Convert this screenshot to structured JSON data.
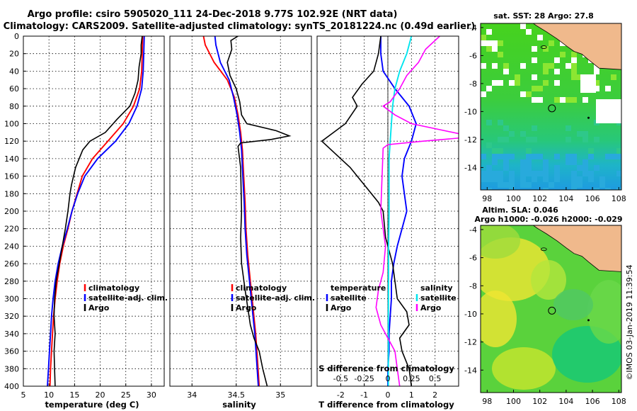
{
  "header": {
    "title_line1": "Argo profile: csiro 5905020_111 24-Dec-2018 9.77S 102.92E (NRT data)",
    "title_line2": "Climatology: CARS2009. Satellite-adjusted climatology: synTS_20181224.nc (0.49d earlier)"
  },
  "colors": {
    "climatology": "#ff0000",
    "satellite": "#0000ff",
    "argo": "#000000",
    "s_satellite": "#00e5ee",
    "s_argo": "#ff00ff",
    "land": "#f0b98c",
    "sst_low": "#1e9be0",
    "sst_high": "#3cdc23",
    "sla_low": "#14c878",
    "sla_high": "#f0e632"
  },
  "chart_data": [
    {
      "type": "line",
      "name": "temperature",
      "xlabel": "temperature (deg C)",
      "ylabel": "",
      "xlim": [
        5,
        32.5
      ],
      "ylim": [
        400,
        0
      ],
      "xticks": [
        5,
        10,
        15,
        20,
        25,
        30
      ],
      "yticks": [
        0,
        20,
        40,
        60,
        80,
        100,
        120,
        140,
        160,
        180,
        200,
        220,
        240,
        260,
        280,
        300,
        320,
        340,
        360,
        380,
        400
      ],
      "legend": [
        "climatology",
        "satellite-adj. clim.",
        "Argo"
      ],
      "legend_position": "lower-right",
      "series": [
        {
          "name": "climatology",
          "points": [
            [
              28.3,
              0
            ],
            [
              28.2,
              20
            ],
            [
              28.1,
              40
            ],
            [
              27.7,
              60
            ],
            [
              26.5,
              80
            ],
            [
              24.5,
              100
            ],
            [
              21.5,
              120
            ],
            [
              18.5,
              140
            ],
            [
              16.5,
              160
            ],
            [
              15.5,
              180
            ],
            [
              14.5,
              200
            ],
            [
              13.7,
              220
            ],
            [
              12.8,
              240
            ],
            [
              12.1,
              260
            ],
            [
              11.6,
              280
            ],
            [
              11.2,
              300
            ],
            [
              10.9,
              320
            ],
            [
              10.7,
              340
            ],
            [
              10.5,
              360
            ],
            [
              10.3,
              380
            ],
            [
              10.2,
              400
            ]
          ]
        },
        {
          "name": "satellite-adj. clim.",
          "points": [
            [
              28.6,
              0
            ],
            [
              28.5,
              20
            ],
            [
              28.4,
              40
            ],
            [
              28.1,
              60
            ],
            [
              27.2,
              80
            ],
            [
              25.6,
              100
            ],
            [
              23.0,
              120
            ],
            [
              19.5,
              140
            ],
            [
              17.0,
              160
            ],
            [
              15.6,
              180
            ],
            [
              14.5,
              200
            ],
            [
              13.6,
              220
            ],
            [
              12.6,
              240
            ],
            [
              11.8,
              260
            ],
            [
              11.2,
              280
            ],
            [
              10.8,
              300
            ],
            [
              10.5,
              320
            ],
            [
              10.3,
              340
            ],
            [
              10.1,
              360
            ],
            [
              9.9,
              380
            ],
            [
              9.7,
              400
            ]
          ]
        },
        {
          "name": "Argo",
          "points": [
            [
              28.2,
              0
            ],
            [
              28.0,
              10
            ],
            [
              28.0,
              20
            ],
            [
              27.6,
              35
            ],
            [
              27.4,
              50
            ],
            [
              26.8,
              65
            ],
            [
              25.8,
              80
            ],
            [
              23.3,
              95
            ],
            [
              21.0,
              110
            ],
            [
              18.0,
              120
            ],
            [
              16.6,
              130
            ],
            [
              15.2,
              150
            ],
            [
              14.4,
              170
            ],
            [
              14.1,
              180
            ],
            [
              13.7,
              200
            ],
            [
              13.2,
              220
            ],
            [
              12.6,
              240
            ],
            [
              12.0,
              260
            ],
            [
              11.4,
              280
            ],
            [
              11.1,
              300
            ],
            [
              11.0,
              320
            ],
            [
              11.2,
              340
            ],
            [
              11.0,
              360
            ],
            [
              11.1,
              380
            ],
            [
              11.2,
              400
            ]
          ]
        }
      ]
    },
    {
      "type": "line",
      "name": "salinity",
      "xlabel": "salinity",
      "ylabel": "",
      "xlim": [
        33.75,
        35.35
      ],
      "ylim": [
        400,
        0
      ],
      "xticks": [
        34,
        34.5,
        35
      ],
      "legend": [
        "climatology",
        "satellite-adj. clim.",
        "Argo"
      ],
      "legend_position": "lower-right",
      "series": [
        {
          "name": "climatology",
          "points": [
            [
              34.13,
              0
            ],
            [
              34.15,
              10
            ],
            [
              34.25,
              30
            ],
            [
              34.4,
              50
            ],
            [
              34.48,
              70
            ],
            [
              34.52,
              90
            ],
            [
              34.55,
              110
            ],
            [
              34.57,
              130
            ],
            [
              34.58,
              150
            ],
            [
              34.59,
              170
            ],
            [
              34.6,
              190
            ],
            [
              34.61,
              220
            ],
            [
              34.63,
              250
            ],
            [
              34.66,
              280
            ],
            [
              34.69,
              310
            ],
            [
              34.72,
              340
            ],
            [
              34.74,
              370
            ],
            [
              34.76,
              400
            ]
          ]
        },
        {
          "name": "satellite-adj. clim.",
          "points": [
            [
              34.26,
              0
            ],
            [
              34.27,
              10
            ],
            [
              34.32,
              30
            ],
            [
              34.42,
              50
            ],
            [
              34.47,
              70
            ],
            [
              34.51,
              90
            ],
            [
              34.54,
              110
            ],
            [
              34.56,
              130
            ],
            [
              34.57,
              150
            ],
            [
              34.58,
              170
            ],
            [
              34.59,
              190
            ],
            [
              34.6,
              220
            ],
            [
              34.62,
              250
            ],
            [
              34.65,
              280
            ],
            [
              34.68,
              310
            ],
            [
              34.71,
              340
            ],
            [
              34.73,
              370
            ],
            [
              34.75,
              400
            ]
          ]
        },
        {
          "name": "Argo",
          "points": [
            [
              34.52,
              0
            ],
            [
              34.44,
              5
            ],
            [
              34.45,
              15
            ],
            [
              34.4,
              30
            ],
            [
              34.43,
              45
            ],
            [
              34.5,
              60
            ],
            [
              34.54,
              75
            ],
            [
              34.56,
              90
            ],
            [
              34.62,
              100
            ],
            [
              34.95,
              108
            ],
            [
              35.1,
              114
            ],
            [
              34.9,
              118
            ],
            [
              34.55,
              122
            ],
            [
              34.52,
              126
            ],
            [
              34.55,
              150
            ],
            [
              34.56,
              200
            ],
            [
              34.55,
              230
            ],
            [
              34.56,
              260
            ],
            [
              34.6,
              290
            ],
            [
              34.63,
              310
            ],
            [
              34.66,
              330
            ],
            [
              34.7,
              345
            ],
            [
              34.76,
              360
            ],
            [
              34.8,
              380
            ],
            [
              34.85,
              400
            ]
          ]
        }
      ]
    },
    {
      "type": "line",
      "name": "differences",
      "xlabel": "T difference from climatology",
      "top_label": "S difference from climatology",
      "xlim": [
        -3,
        3
      ],
      "ylim": [
        400,
        0
      ],
      "xticks": [
        -2,
        -1,
        0,
        1,
        2
      ],
      "top_ticks": [
        "-0.5",
        "-0.25",
        "0",
        "0.25",
        "0.5"
      ],
      "legend_t": {
        "header": "temperature",
        "items": [
          "satellite",
          "Argo"
        ]
      },
      "legend_s": {
        "header": "salinity",
        "items": [
          "satellite",
          "Argo"
        ]
      },
      "series": [
        {
          "name": "T satellite",
          "points": [
            [
              -0.3,
              0
            ],
            [
              -0.3,
              20
            ],
            [
              -0.2,
              40
            ],
            [
              0.3,
              60
            ],
            [
              0.9,
              80
            ],
            [
              1.2,
              100
            ],
            [
              1.0,
              120
            ],
            [
              0.7,
              140
            ],
            [
              0.6,
              160
            ],
            [
              0.7,
              180
            ],
            [
              0.8,
              200
            ],
            [
              0.6,
              220
            ],
            [
              0.4,
              240
            ],
            [
              0.25,
              260
            ],
            [
              0.15,
              280
            ],
            [
              0.15,
              300
            ],
            [
              0.1,
              320
            ],
            [
              0.05,
              340
            ],
            [
              0.05,
              360
            ],
            [
              0.0,
              380
            ],
            [
              0.0,
              400
            ]
          ]
        },
        {
          "name": "T Argo",
          "points": [
            [
              -0.3,
              0
            ],
            [
              -0.4,
              20
            ],
            [
              -0.6,
              40
            ],
            [
              -1.1,
              55
            ],
            [
              -1.5,
              70
            ],
            [
              -1.3,
              80
            ],
            [
              -1.8,
              100
            ],
            [
              -2.8,
              120
            ],
            [
              -2.4,
              130
            ],
            [
              -1.6,
              150
            ],
            [
              -1.0,
              170
            ],
            [
              -0.4,
              190
            ],
            [
              -0.2,
              200
            ],
            [
              -0.1,
              230
            ],
            [
              0.2,
              260
            ],
            [
              0.3,
              280
            ],
            [
              0.4,
              300
            ],
            [
              0.8,
              315
            ],
            [
              0.9,
              330
            ],
            [
              0.5,
              345
            ],
            [
              0.6,
              360
            ],
            [
              0.9,
              380
            ],
            [
              1.0,
              400
            ]
          ]
        },
        {
          "name": "S satellite",
          "points": [
            [
              1.0,
              0
            ],
            [
              0.8,
              20
            ],
            [
              0.5,
              40
            ],
            [
              0.3,
              60
            ],
            [
              0.2,
              80
            ],
            [
              0.15,
              100
            ],
            [
              0.1,
              120
            ],
            [
              0.05,
              140
            ],
            [
              0.05,
              160
            ],
            [
              0.05,
              180
            ],
            [
              0.05,
              200
            ],
            [
              0.03,
              240
            ],
            [
              0.03,
              280
            ],
            [
              0.02,
              320
            ],
            [
              0.02,
              360
            ],
            [
              0.02,
              400
            ]
          ]
        },
        {
          "name": "S Argo",
          "points": [
            [
              2.2,
              0
            ],
            [
              1.6,
              15
            ],
            [
              1.3,
              30
            ],
            [
              0.8,
              45
            ],
            [
              0.5,
              60
            ],
            [
              0.1,
              75
            ],
            [
              -0.2,
              80
            ],
            [
              0.3,
              90
            ],
            [
              1.0,
              100
            ],
            [
              3.1,
              112
            ],
            [
              3.2,
              116
            ],
            [
              1.5,
              120
            ],
            [
              0.0,
              124
            ],
            [
              -0.2,
              128
            ],
            [
              -0.3,
              200
            ],
            [
              -0.1,
              240
            ],
            [
              -0.2,
              270
            ],
            [
              -0.4,
              290
            ],
            [
              -0.5,
              310
            ],
            [
              -0.3,
              330
            ],
            [
              0.0,
              345
            ],
            [
              0.3,
              360
            ],
            [
              0.4,
              380
            ],
            [
              0.5,
              400
            ]
          ]
        }
      ]
    },
    {
      "type": "heatmap",
      "name": "sst_map",
      "title": "sat. SST: 28 Argo: 27.8",
      "xlim": [
        97.5,
        108.2
      ],
      "ylim": [
        -15.6,
        -3.7
      ],
      "xticks": [
        98,
        100,
        102,
        104,
        106,
        108
      ],
      "yticks": [
        -4,
        -6,
        -8,
        -10,
        -12,
        -14
      ],
      "argo_position": [
        102.92,
        -9.77
      ]
    },
    {
      "type": "heatmap",
      "name": "sla_map",
      "title_line1": "Altim. SLA: 0.046",
      "title_line2": "Argo h1000: -0.026 h2000: -0.029",
      "xlim": [
        97.5,
        108.2
      ],
      "ylim": [
        -15.6,
        -3.7
      ],
      "xticks": [
        98,
        100,
        102,
        104,
        106,
        108
      ],
      "yticks": [
        -4,
        -6,
        -8,
        -10,
        -12,
        -14
      ],
      "argo_position": [
        102.92,
        -9.77
      ]
    }
  ],
  "footer": {
    "credit": "©IMOS 03-Jan-2019 11:39:54"
  }
}
